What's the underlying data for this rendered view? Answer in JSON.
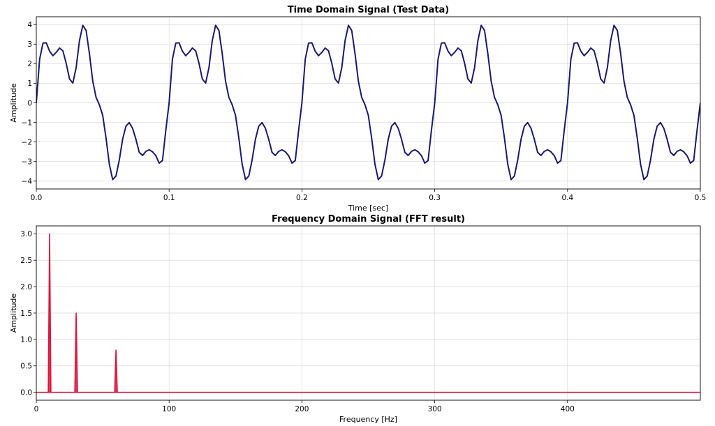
{
  "chart_data": [
    {
      "type": "line",
      "title": "Time Domain Signal (Test Data)",
      "xlabel": "Time [sec]",
      "ylabel": "Amplitude",
      "xlim": [
        0,
        0.5
      ],
      "ylim": [
        -4.4,
        4.4
      ],
      "xticks": [
        0.0,
        0.1,
        0.2,
        0.3,
        0.4,
        0.5
      ],
      "xtick_labels": [
        "0.0",
        "0.1",
        "0.2",
        "0.3",
        "0.4",
        "0.5"
      ],
      "yticks": [
        -4,
        -3,
        -2,
        -1,
        0,
        1,
        2,
        3,
        4
      ],
      "ytick_labels": [
        "−4",
        "−3",
        "−2",
        "−1",
        "0",
        "1",
        "2",
        "3",
        "4"
      ],
      "grid": true,
      "color": "#191970",
      "series": [
        {
          "x": [
            0,
            0.0025,
            0.005,
            0.0075,
            0.01,
            0.0125,
            0.015,
            0.0175,
            0.02,
            0.0225,
            0.025,
            0.0275,
            0.03,
            0.0325,
            0.035,
            0.0375,
            0.04,
            0.0425,
            0.045,
            0.0475,
            0.05,
            0.0525,
            0.055,
            0.0575,
            0.06,
            0.0625,
            0.065,
            0.0675,
            0.07,
            0.0725,
            0.075,
            0.0775,
            0.08,
            0.0825,
            0.085,
            0.0875,
            0.09,
            0.0925,
            0.095,
            0.0975,
            0.1,
            0.1025,
            0.105,
            0.1075,
            0.11,
            0.1125,
            0.115,
            0.1175,
            0.12,
            0.1225,
            0.125,
            0.1275,
            0.13,
            0.1325,
            0.135,
            0.1375,
            0.14,
            0.1425,
            0.145,
            0.1475,
            0.15,
            0.1525,
            0.155,
            0.1575,
            0.16,
            0.1625,
            0.165,
            0.1675,
            0.17,
            0.1725,
            0.175,
            0.1775,
            0.18,
            0.1825,
            0.185,
            0.1875,
            0.19,
            0.1925,
            0.195,
            0.1975,
            0.2,
            0.2025,
            0.205,
            0.2075,
            0.21,
            0.2125,
            0.215,
            0.2175,
            0.22,
            0.2225,
            0.225,
            0.2275,
            0.23,
            0.2325,
            0.235,
            0.2375,
            0.24,
            0.2425,
            0.245,
            0.2475,
            0.25,
            0.2525,
            0.255,
            0.2575,
            0.26,
            0.2625,
            0.265,
            0.2675,
            0.27,
            0.2725,
            0.275,
            0.2775,
            0.28,
            0.2825,
            0.285,
            0.2875,
            0.29,
            0.2925,
            0.295,
            0.2975,
            0.3,
            0.3025,
            0.305,
            0.3075,
            0.31,
            0.3125,
            0.315,
            0.3175,
            0.32,
            0.3225,
            0.325,
            0.3275,
            0.33,
            0.3325,
            0.335,
            0.3375,
            0.34,
            0.3425,
            0.345,
            0.3475,
            0.35,
            0.3525,
            0.355,
            0.3575,
            0.36,
            0.3625,
            0.365,
            0.3675,
            0.37,
            0.3725,
            0.375,
            0.3775,
            0.38,
            0.3825,
            0.385,
            0.3875,
            0.39,
            0.3925,
            0.395,
            0.3975,
            0.4,
            0.4025,
            0.405,
            0.4075,
            0.41,
            0.4125,
            0.415,
            0.4175,
            0.42,
            0.4225,
            0.425,
            0.4275,
            0.43,
            0.4325,
            0.435,
            0.4375,
            0.44,
            0.4425,
            0.445,
            0.4475,
            0.45,
            0.4525,
            0.455,
            0.4575,
            0.46,
            0.4625,
            0.465,
            0.4675,
            0.47,
            0.4725,
            0.475,
            0.4775,
            0.48,
            0.4825,
            0.485,
            0.4875,
            0.49,
            0.4925,
            0.495,
            0.4975,
            0.5
          ],
          "y": [
            0.0,
            2.23,
            3.05,
            3.07,
            2.64,
            2.41,
            2.58,
            2.8,
            2.66,
            2.02,
            1.22,
            1.01,
            1.8,
            3.18,
            3.96,
            3.7,
            2.51,
            1.11,
            0.28,
            -0.1,
            -0.64,
            -1.8,
            -3.14,
            -3.92,
            -3.74,
            -2.92,
            -1.86,
            -1.19,
            -1.01,
            -1.3,
            -1.86,
            -2.53,
            -2.69,
            -2.48,
            -2.4,
            -2.5,
            -2.7,
            -3.08,
            -2.95,
            -1.41,
            0.0,
            2.23,
            3.05,
            3.07,
            2.64,
            2.41,
            2.58,
            2.8,
            2.66,
            2.02,
            1.22,
            1.01,
            1.8,
            3.18,
            3.96,
            3.7,
            2.51,
            1.11,
            0.28,
            -0.1,
            -0.64,
            -1.8,
            -3.14,
            -3.92,
            -3.74,
            -2.92,
            -1.86,
            -1.19,
            -1.01,
            -1.3,
            -1.86,
            -2.53,
            -2.69,
            -2.48,
            -2.4,
            -2.5,
            -2.7,
            -3.08,
            -2.95,
            -1.41,
            0.0,
            2.23,
            3.05,
            3.07,
            2.64,
            2.41,
            2.58,
            2.8,
            2.66,
            2.02,
            1.22,
            1.01,
            1.8,
            3.18,
            3.96,
            3.7,
            2.51,
            1.11,
            0.28,
            -0.1,
            -0.64,
            -1.8,
            -3.14,
            -3.92,
            -3.74,
            -2.92,
            -1.86,
            -1.19,
            -1.01,
            -1.3,
            -1.86,
            -2.53,
            -2.69,
            -2.48,
            -2.4,
            -2.5,
            -2.7,
            -3.08,
            -2.95,
            -1.41,
            0.0,
            2.23,
            3.05,
            3.07,
            2.64,
            2.41,
            2.58,
            2.8,
            2.66,
            2.02,
            1.22,
            1.01,
            1.8,
            3.18,
            3.96,
            3.7,
            2.51,
            1.11,
            0.28,
            -0.1,
            -0.64,
            -1.8,
            -3.14,
            -3.92,
            -3.74,
            -2.92,
            -1.86,
            -1.19,
            -1.01,
            -1.3,
            -1.86,
            -2.53,
            -2.69,
            -2.48,
            -2.4,
            -2.5,
            -2.7,
            -3.08,
            -2.95,
            -1.41,
            0.0,
            2.23,
            3.05,
            3.07,
            2.64,
            2.41,
            2.58,
            2.8,
            2.66,
            2.02,
            1.22,
            1.01,
            1.8,
            3.18,
            3.96,
            3.7,
            2.51,
            1.11,
            0.28,
            -0.1,
            -0.64,
            -1.8,
            -3.14,
            -3.92,
            -3.74,
            -2.92,
            -1.86,
            -1.19,
            -1.01,
            -1.3,
            -1.86,
            -2.53,
            -2.69,
            -2.48,
            -2.4,
            -2.5,
            -2.7,
            -3.08,
            -2.95,
            -1.41,
            0.0
          ]
        }
      ]
    },
    {
      "type": "area",
      "title": "Frequency Domain Signal (FFT result)",
      "xlabel": "Frequency [Hz]",
      "ylabel": "Amplitude",
      "xlim": [
        0,
        500
      ],
      "ylim": [
        -0.15,
        3.15
      ],
      "xticks": [
        0,
        100,
        200,
        300,
        400
      ],
      "xtick_labels": [
        "0",
        "100",
        "200",
        "300",
        "400"
      ],
      "yticks": [
        0.0,
        0.5,
        1.0,
        1.5,
        2.0,
        2.5,
        3.0
      ],
      "ytick_labels": [
        "0.0",
        "0.5",
        "1.0",
        "1.5",
        "2.0",
        "2.5",
        "3.0"
      ],
      "grid": true,
      "color": "#dc143c",
      "series": [
        {
          "x": [
            0,
            9,
            10,
            11,
            29,
            30,
            31,
            59,
            60,
            61,
            500
          ],
          "y": [
            0,
            0,
            3.0,
            0,
            0,
            1.5,
            0,
            0,
            0.8,
            0,
            0
          ]
        }
      ]
    }
  ]
}
